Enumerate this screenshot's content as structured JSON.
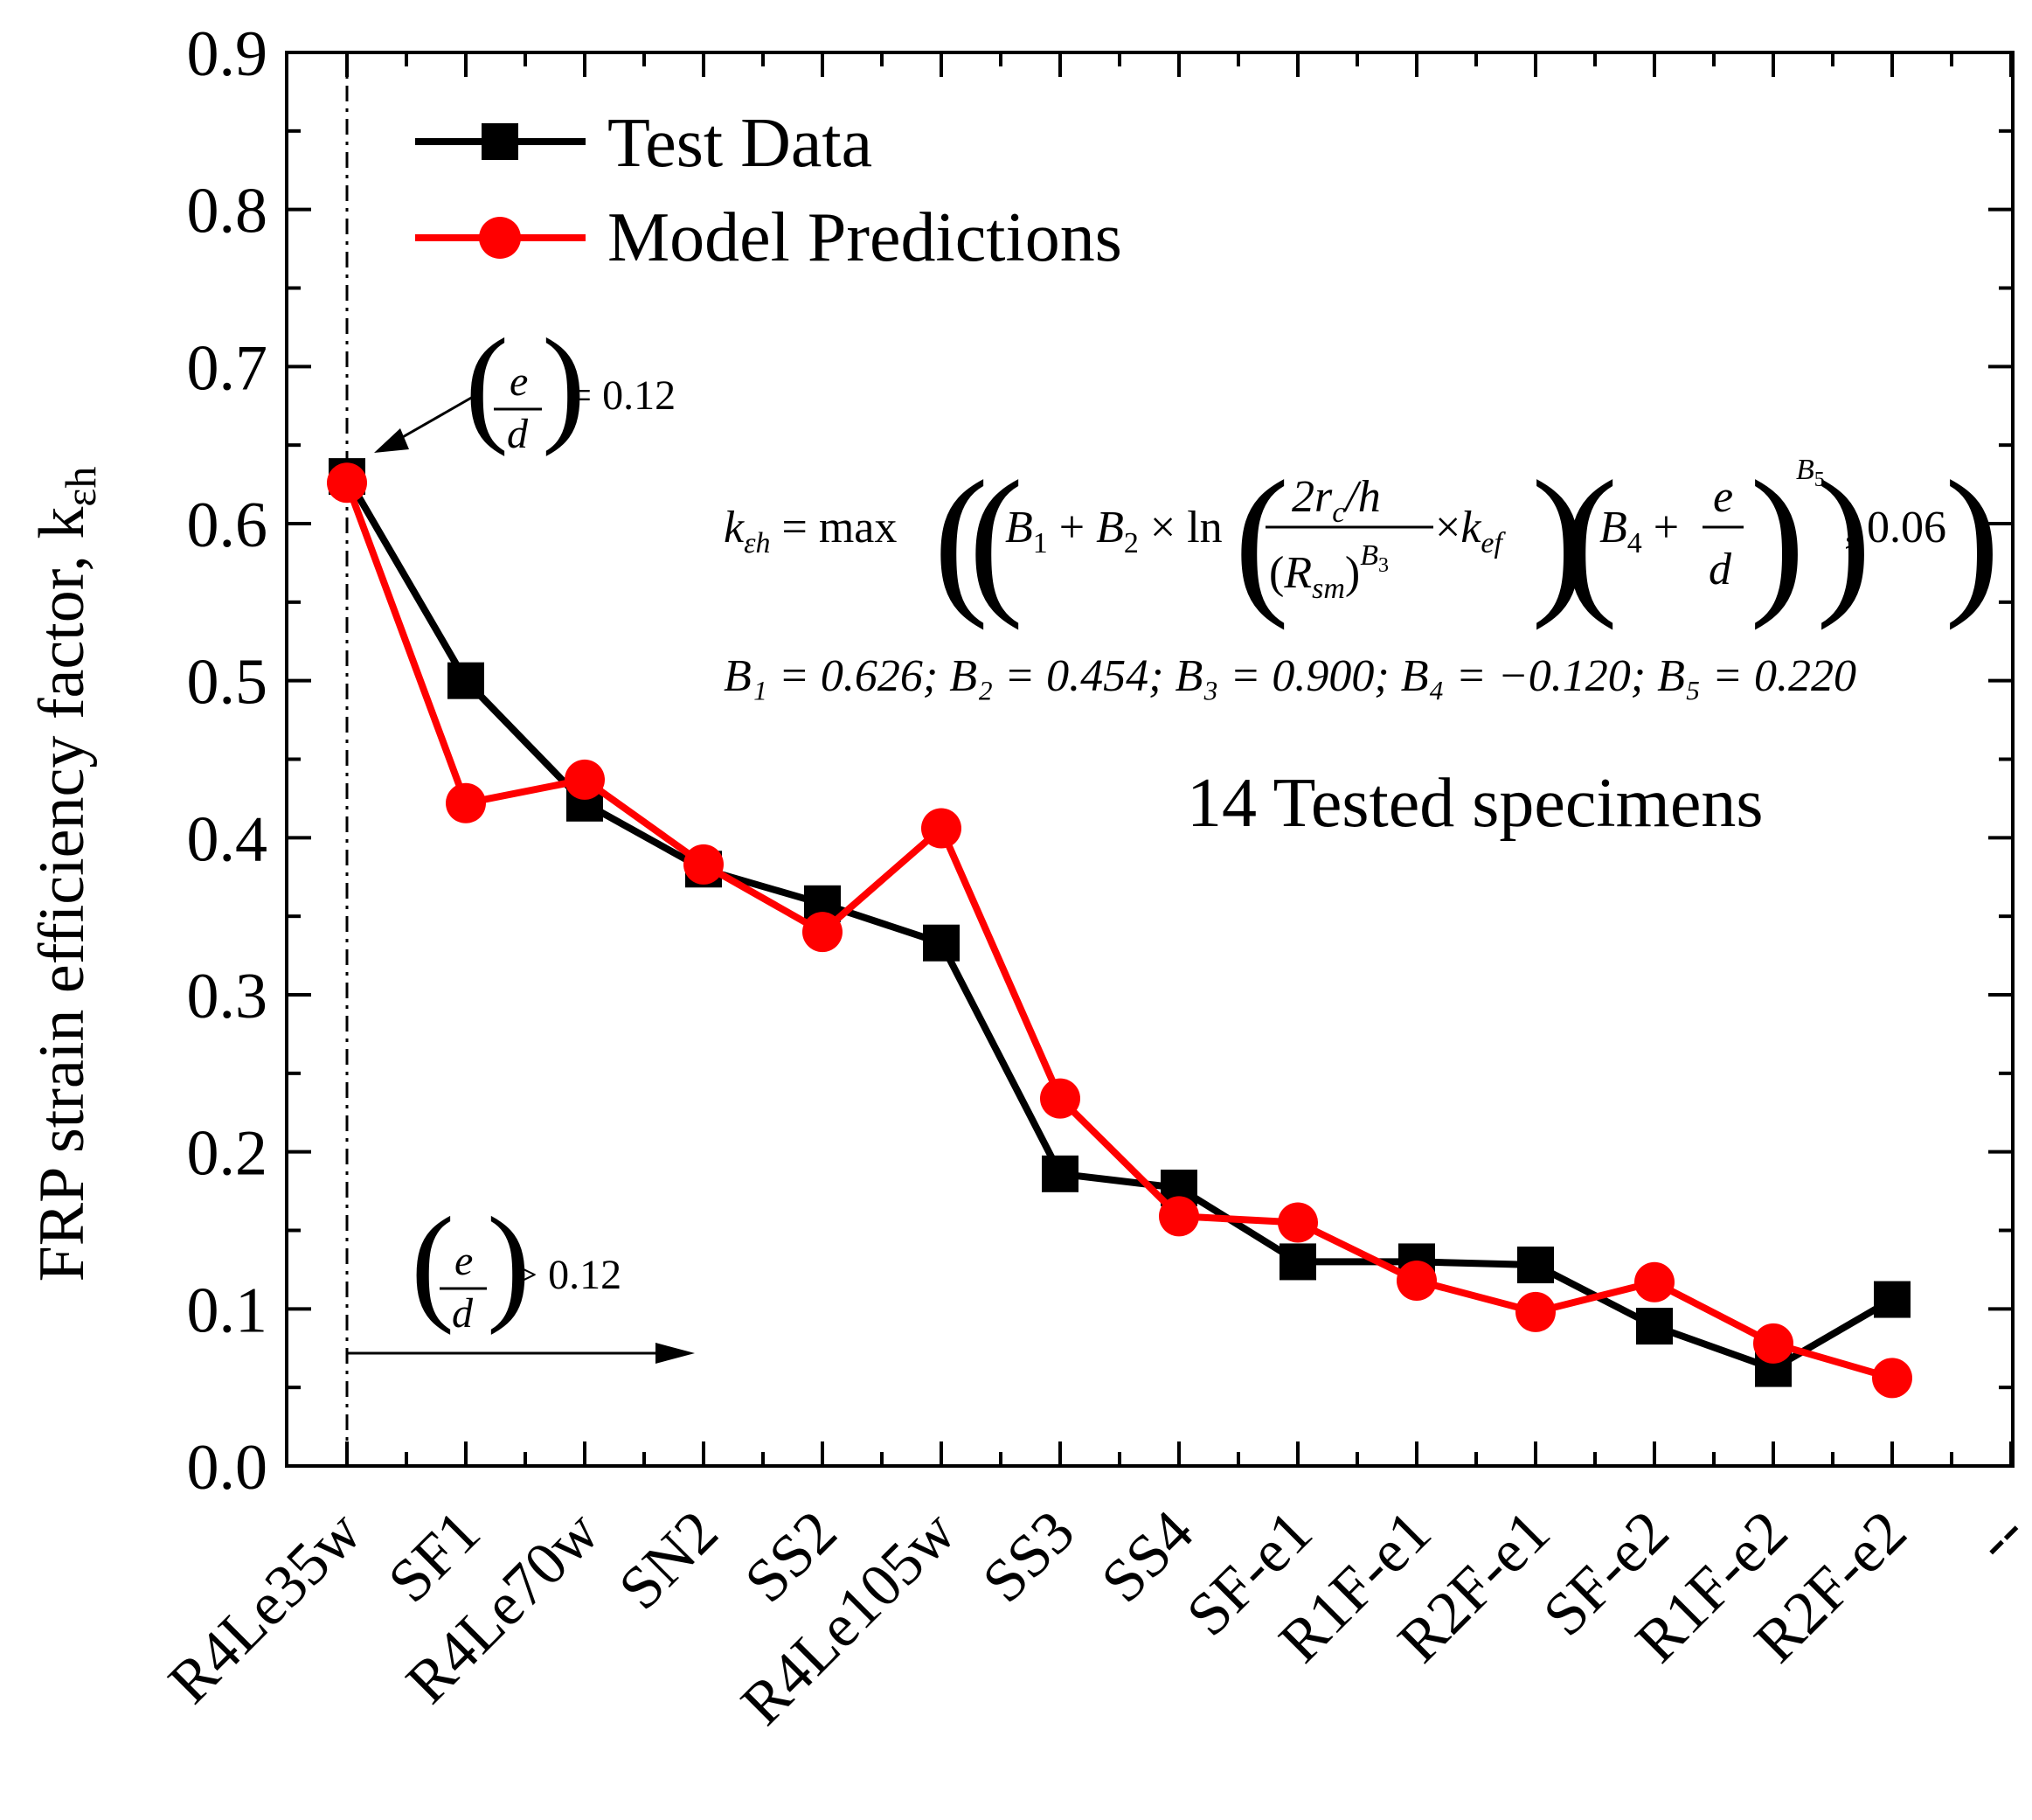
{
  "chart_data": {
    "type": "line",
    "xlabel": "",
    "ylabel": "FRP strain efficiency factor, k",
    "ylabel_subscript": "εh",
    "ylim": [
      0.0,
      0.9
    ],
    "yticks": [
      "0.0",
      "0.1",
      "0.2",
      "0.3",
      "0.4",
      "0.5",
      "0.6",
      "0.7",
      "0.8",
      "0.9"
    ],
    "categories": [
      "R4Le35w",
      "SF1",
      "R4Le70w",
      "SN2",
      "SS2",
      "R4Le105w",
      "SS3",
      "SS4",
      "SF-e1",
      "R1F-e1",
      "R2F-e1",
      "SF-e2",
      "R1F-e2",
      "R2F-e2",
      "--"
    ],
    "series": [
      {
        "name": "Test Data",
        "color": "#000000",
        "marker": "square",
        "values": [
          0.63,
          0.5,
          0.422,
          0.38,
          0.358,
          0.333,
          0.186,
          0.177,
          0.13,
          0.13,
          0.128,
          0.089,
          0.062,
          0.106,
          null
        ]
      },
      {
        "name": "Model Predictions",
        "color": "#ff0000",
        "marker": "circle",
        "values": [
          0.626,
          0.422,
          0.437,
          0.383,
          0.34,
          0.406,
          0.234,
          0.159,
          0.155,
          0.118,
          0.098,
          0.117,
          0.078,
          0.056,
          null
        ]
      }
    ],
    "legend_position": "top-left",
    "grid": false
  },
  "annotations": {
    "specimens_note": "14 Tested specimens",
    "equation": {
      "lhs_k": "k",
      "lhs_sub": "εh",
      "max_text": "max",
      "ln_text": "ln",
      "B1": "B",
      "B1_sub": "1",
      "B2": "B",
      "B2_sub": "2",
      "two_rc": "2r",
      "rc_sub": "c",
      "slash_h": "/h",
      "Rsm": "R",
      "Rsm_sub": "sm",
      "B3_sup": "B",
      "B3_sup_sub": "3",
      "kef": "k",
      "kef_sub": "ef",
      "B4": "B",
      "B4_sub": "4",
      "e": "e",
      "d": "d",
      "B5_sup": "B",
      "B5_sup_sub": "5",
      "tail": ", 0.06"
    },
    "coefficients": "B₁ = 0.626; B₂ = 0.454; B₃ = 0.900; B₄ = −0.120; B₅ = 0.220",
    "threshold_eq": {
      "e": "e",
      "d": "d",
      "rel": "= 0.12"
    },
    "threshold_gt": {
      "e": "e",
      "d": "d",
      "rel": "> 0.12"
    }
  }
}
